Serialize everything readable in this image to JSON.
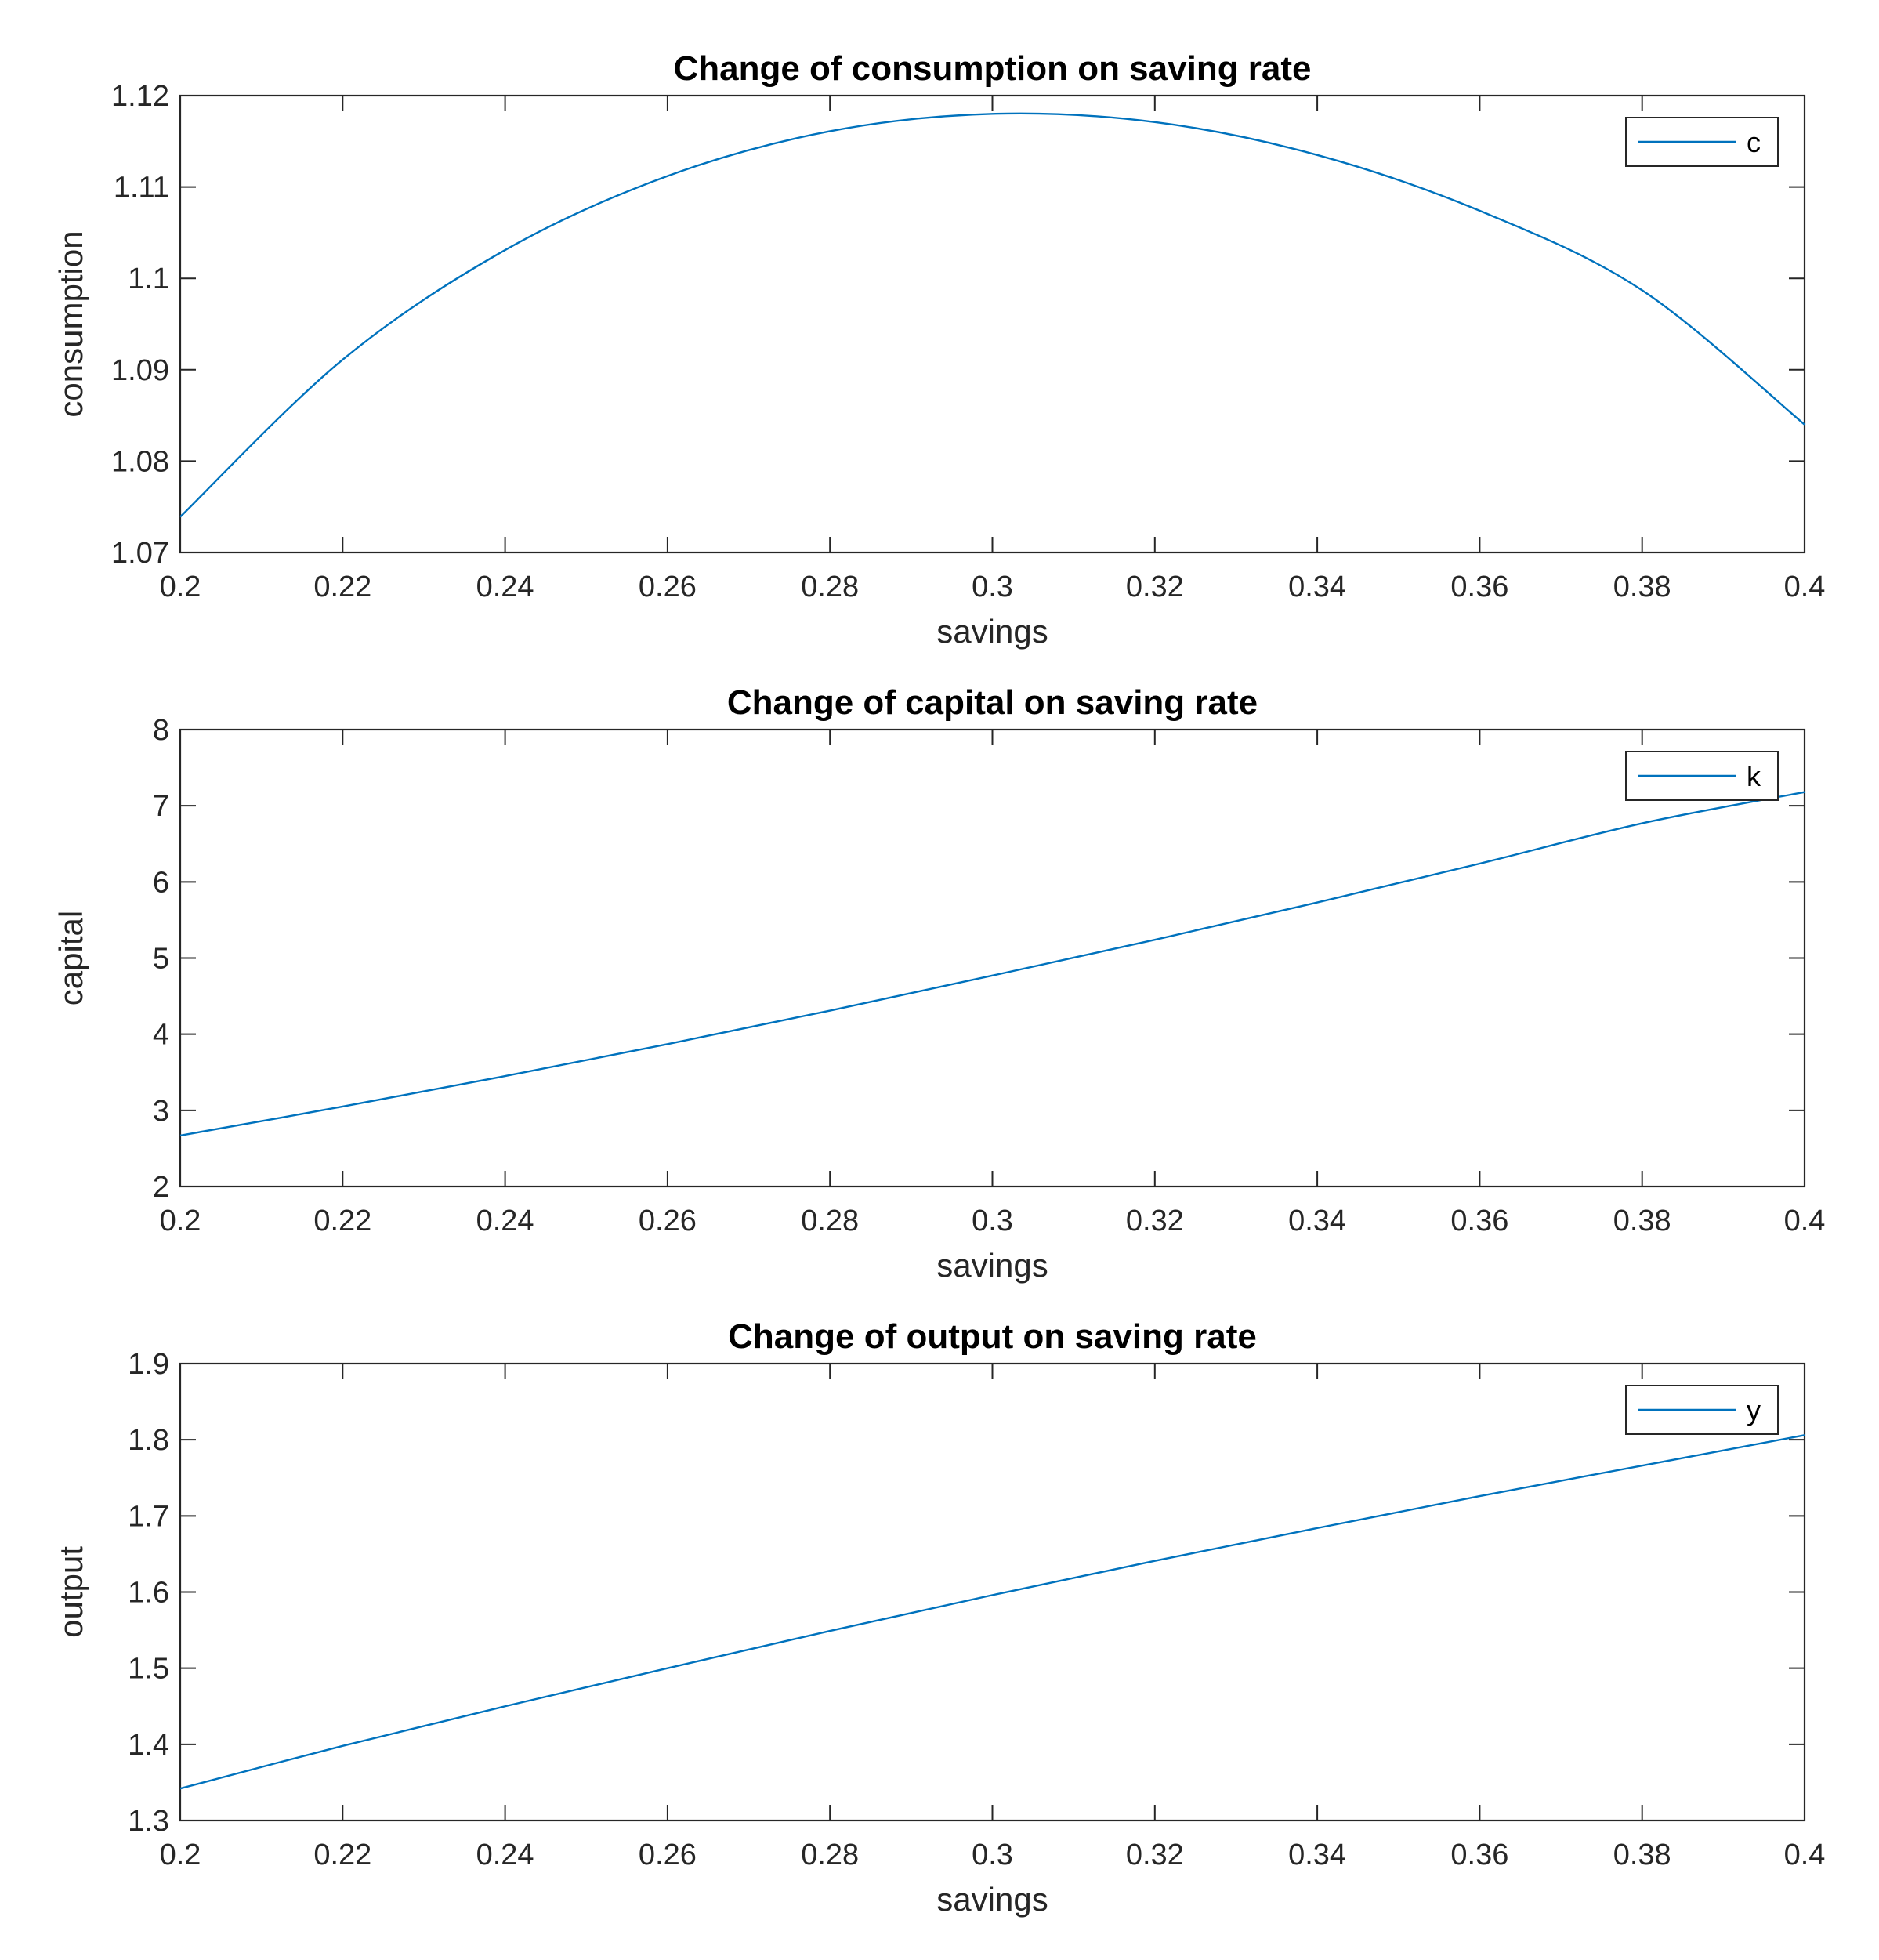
{
  "figure": {
    "line_color": "#0072BD",
    "axis_color": "#262626",
    "background": "#ffffff"
  },
  "chart_data": [
    {
      "type": "line",
      "title": "Change of consumption on saving rate",
      "xlabel": "savings",
      "ylabel": "consumption",
      "xlim": [
        0.2,
        0.4
      ],
      "ylim": [
        1.07,
        1.12
      ],
      "xticks": [
        "0.2",
        "0.22",
        "0.24",
        "0.26",
        "0.28",
        "0.3",
        "0.32",
        "0.34",
        "0.36",
        "0.38",
        "0.4"
      ],
      "yticks": [
        "1.07",
        "1.08",
        "1.09",
        "1.1",
        "1.11",
        "1.12"
      ],
      "grid": false,
      "legend_position": "top-right",
      "series": [
        {
          "name": "c",
          "x": [
            0.2,
            0.22,
            0.24,
            0.26,
            0.28,
            0.3,
            0.32,
            0.34,
            0.36,
            0.38,
            0.4
          ],
          "y": [
            1.0739,
            1.0911,
            1.1031,
            1.1112,
            1.1161,
            1.118,
            1.1171,
            1.1135,
            1.1074,
            1.0987,
            1.084
          ]
        }
      ]
    },
    {
      "type": "line",
      "title": "Change of capital on saving rate",
      "xlabel": "savings",
      "ylabel": "capital",
      "xlim": [
        0.2,
        0.4
      ],
      "ylim": [
        2,
        8
      ],
      "xticks": [
        "0.2",
        "0.22",
        "0.24",
        "0.26",
        "0.28",
        "0.3",
        "0.32",
        "0.34",
        "0.36",
        "0.38",
        "0.4"
      ],
      "yticks": [
        "2",
        "3",
        "4",
        "5",
        "6",
        "7",
        "8"
      ],
      "grid": false,
      "legend_position": "top-right",
      "series": [
        {
          "name": "k",
          "x": [
            0.2,
            0.22,
            0.24,
            0.26,
            0.28,
            0.3,
            0.32,
            0.34,
            0.36,
            0.38,
            0.4
          ],
          "y": [
            2.67,
            3.05,
            3.45,
            3.87,
            4.31,
            4.77,
            5.24,
            5.73,
            6.24,
            6.77,
            7.18
          ]
        }
      ]
    },
    {
      "type": "line",
      "title": "Change of output on saving rate",
      "xlabel": "savings",
      "ylabel": "output",
      "xlim": [
        0.2,
        0.4
      ],
      "ylim": [
        1.3,
        1.9
      ],
      "xticks": [
        "0.2",
        "0.22",
        "0.24",
        "0.26",
        "0.28",
        "0.3",
        "0.32",
        "0.34",
        "0.36",
        "0.38",
        "0.4"
      ],
      "yticks": [
        "1.3",
        "1.4",
        "1.5",
        "1.6",
        "1.7",
        "1.8",
        "1.9"
      ],
      "grid": false,
      "legend_position": "top-right",
      "series": [
        {
          "name": "y",
          "x": [
            0.2,
            0.22,
            0.24,
            0.26,
            0.28,
            0.3,
            0.32,
            0.34,
            0.36,
            0.38,
            0.4
          ],
          "y": [
            1.342,
            1.398,
            1.45,
            1.5,
            1.549,
            1.596,
            1.641,
            1.684,
            1.726,
            1.766,
            1.806
          ]
        }
      ]
    }
  ]
}
